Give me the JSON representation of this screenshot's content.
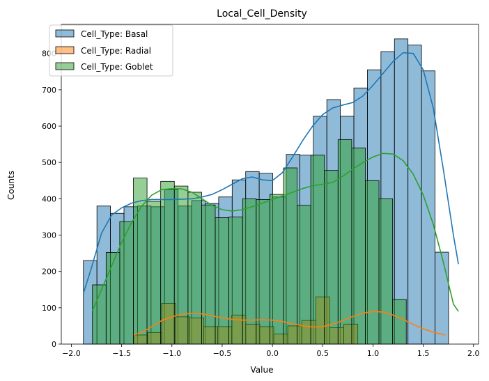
{
  "chart_data": {
    "type": "histogram",
    "title": "Local_Cell_Density",
    "xlabel": "Value",
    "ylabel": "Counts",
    "xlim": [
      -2.1,
      2.05
    ],
    "ylim": [
      0,
      880
    ],
    "xticks": [
      -2.0,
      -1.5,
      -1.0,
      -0.5,
      0.0,
      0.5,
      1.0,
      1.5,
      2.0
    ],
    "xtick_labels": [
      "−2.0",
      "−1.5",
      "−1.0",
      "−0.5",
      "0.0",
      "0.5",
      "1.0",
      "1.5",
      "2.0"
    ],
    "yticks": [
      0,
      100,
      200,
      300,
      400,
      500,
      600,
      700,
      800
    ],
    "yticks_labels": [
      "0",
      "100",
      "200",
      "300",
      "400",
      "500",
      "600",
      "700",
      "800"
    ],
    "legend_position": "top-left",
    "grid": false,
    "series": [
      {
        "name": "Cell_Type: Basal",
        "fill": "#1f77b4",
        "fill_opacity": 0.5,
        "line": "#1f77b4",
        "bin_start": -1.88,
        "bin_width": 0.1345,
        "counts": [
          230,
          380,
          360,
          378,
          380,
          378,
          425,
          380,
          395,
          387,
          405,
          452,
          475,
          470,
          405,
          522,
          520,
          627,
          673,
          627,
          705,
          755,
          805,
          840,
          823,
          752,
          253
        ],
        "kde": [
          [
            -1.88,
            140
          ],
          [
            -1.8,
            210
          ],
          [
            -1.7,
            305
          ],
          [
            -1.6,
            355
          ],
          [
            -1.5,
            375
          ],
          [
            -1.4,
            388
          ],
          [
            -1.3,
            395
          ],
          [
            -1.2,
            398
          ],
          [
            -1.1,
            398
          ],
          [
            -1.0,
            398
          ],
          [
            -0.9,
            399
          ],
          [
            -0.8,
            400
          ],
          [
            -0.7,
            405
          ],
          [
            -0.6,
            412
          ],
          [
            -0.5,
            425
          ],
          [
            -0.4,
            440
          ],
          [
            -0.3,
            455
          ],
          [
            -0.2,
            460
          ],
          [
            -0.1,
            452
          ],
          [
            0.0,
            450
          ],
          [
            0.1,
            472
          ],
          [
            0.2,
            515
          ],
          [
            0.3,
            560
          ],
          [
            0.4,
            600
          ],
          [
            0.5,
            632
          ],
          [
            0.6,
            650
          ],
          [
            0.7,
            658
          ],
          [
            0.8,
            665
          ],
          [
            0.9,
            683
          ],
          [
            1.0,
            712
          ],
          [
            1.1,
            745
          ],
          [
            1.2,
            778
          ],
          [
            1.3,
            802
          ],
          [
            1.4,
            800
          ],
          [
            1.5,
            755
          ],
          [
            1.6,
            650
          ],
          [
            1.7,
            480
          ],
          [
            1.8,
            300
          ],
          [
            1.85,
            220
          ]
        ]
      },
      {
        "name": "Cell_Type: Radial",
        "fill": "#ff7f0e",
        "fill_opacity": 0.5,
        "line": "#ff7f0e",
        "bin_start": -1.38,
        "bin_width": 0.1393,
        "counts": [
          25,
          32,
          112,
          75,
          72,
          48,
          48,
          80,
          55,
          48,
          28,
          50,
          65,
          130,
          45,
          55
        ],
        "kde": [
          [
            -1.38,
            25
          ],
          [
            -1.3,
            32
          ],
          [
            -1.2,
            48
          ],
          [
            -1.1,
            65
          ],
          [
            -1.0,
            75
          ],
          [
            -0.9,
            82
          ],
          [
            -0.8,
            85
          ],
          [
            -0.7,
            83
          ],
          [
            -0.6,
            78
          ],
          [
            -0.5,
            72
          ],
          [
            -0.4,
            68
          ],
          [
            -0.3,
            66
          ],
          [
            -0.2,
            66
          ],
          [
            -0.1,
            67
          ],
          [
            0.0,
            66
          ],
          [
            0.1,
            62
          ],
          [
            0.2,
            56
          ],
          [
            0.3,
            50
          ],
          [
            0.4,
            47
          ],
          [
            0.5,
            48
          ],
          [
            0.6,
            55
          ],
          [
            0.7,
            65
          ],
          [
            0.8,
            76
          ],
          [
            0.9,
            85
          ],
          [
            1.0,
            90
          ],
          [
            1.1,
            88
          ],
          [
            1.2,
            80
          ],
          [
            1.3,
            68
          ],
          [
            1.4,
            54
          ],
          [
            1.5,
            42
          ],
          [
            1.6,
            33
          ],
          [
            1.72,
            25
          ]
        ]
      },
      {
        "name": "Cell_Type: Goblet",
        "fill": "#2ca02c",
        "fill_opacity": 0.5,
        "line": "#2ca02c",
        "bin_start": -1.79,
        "bin_width": 0.1357,
        "counts": [
          163,
          252,
          337,
          457,
          393,
          448,
          435,
          418,
          383,
          348,
          350,
          400,
          398,
          412,
          485,
          382,
          520,
          478,
          563,
          540,
          450,
          400,
          123
        ],
        "kde": [
          [
            -1.79,
            92
          ],
          [
            -1.7,
            150
          ],
          [
            -1.6,
            215
          ],
          [
            -1.5,
            280
          ],
          [
            -1.4,
            335
          ],
          [
            -1.3,
            380
          ],
          [
            -1.2,
            410
          ],
          [
            -1.1,
            425
          ],
          [
            -1.0,
            428
          ],
          [
            -0.9,
            427
          ],
          [
            -0.8,
            418
          ],
          [
            -0.7,
            400
          ],
          [
            -0.6,
            382
          ],
          [
            -0.5,
            370
          ],
          [
            -0.4,
            366
          ],
          [
            -0.3,
            370
          ],
          [
            -0.2,
            378
          ],
          [
            -0.1,
            388
          ],
          [
            0.0,
            398
          ],
          [
            0.1,
            408
          ],
          [
            0.2,
            418
          ],
          [
            0.3,
            428
          ],
          [
            0.4,
            436
          ],
          [
            0.5,
            440
          ],
          [
            0.6,
            445
          ],
          [
            0.7,
            462
          ],
          [
            0.8,
            482
          ],
          [
            0.9,
            500
          ],
          [
            1.0,
            515
          ],
          [
            1.1,
            525
          ],
          [
            1.2,
            523
          ],
          [
            1.3,
            505
          ],
          [
            1.4,
            468
          ],
          [
            1.5,
            410
          ],
          [
            1.6,
            330
          ],
          [
            1.7,
            225
          ],
          [
            1.8,
            110
          ],
          [
            1.85,
            90
          ]
        ]
      }
    ]
  }
}
